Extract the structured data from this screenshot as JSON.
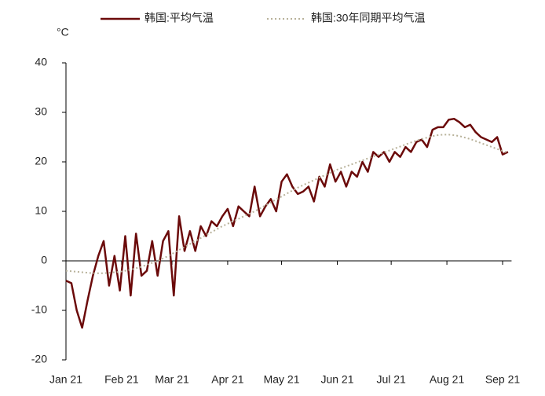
{
  "chart_data": {
    "type": "line",
    "y_unit": "°C",
    "x": [
      0,
      3,
      6,
      9,
      12,
      15,
      18,
      21,
      24,
      27,
      30,
      33,
      36,
      39,
      42,
      45,
      48,
      51,
      54,
      57,
      60,
      63,
      66,
      69,
      72,
      75,
      78,
      81,
      84,
      87,
      90,
      93,
      96,
      99,
      102,
      105,
      108,
      111,
      114,
      117,
      120,
      123,
      126,
      129,
      132,
      135,
      138,
      141,
      144,
      147,
      150,
      153,
      156,
      159,
      162,
      165,
      168,
      171,
      174,
      177,
      180,
      183,
      186,
      189,
      192,
      195,
      198,
      201,
      204,
      207,
      210,
      213,
      216,
      219,
      222,
      225,
      228,
      231,
      234,
      237,
      240,
      243,
      246
    ],
    "series": [
      {
        "name": "韩国:平均气温",
        "color": "#6b0a0a",
        "style": "solid",
        "values": [
          -4,
          -4.5,
          -10,
          -13.5,
          -8,
          -3,
          1,
          4,
          -5,
          1,
          -6,
          5,
          -7,
          5.5,
          -3,
          -2,
          4,
          -3,
          4,
          6,
          -7,
          9,
          2,
          6,
          2,
          7,
          5,
          8,
          7,
          9,
          10.5,
          7,
          11,
          10,
          9,
          15,
          9,
          11,
          12.5,
          10,
          16,
          17.5,
          15,
          13.5,
          14,
          15,
          12,
          17,
          15,
          19.5,
          16,
          18,
          15,
          18,
          17,
          20,
          18,
          22,
          21,
          22,
          20,
          22,
          21,
          23,
          22,
          24,
          24.5,
          23,
          26.5,
          27,
          27,
          28.5,
          28.7,
          28,
          27,
          27.5,
          26,
          25,
          24.5,
          24,
          25,
          21.5,
          22
        ]
      },
      {
        "name": "韩国:30年同期平均气温",
        "color": "#b8b29a",
        "style": "dotted",
        "values": [
          -2,
          -2.1,
          -2.2,
          -2.3,
          -2.4,
          -2.5,
          -2.5,
          -2.5,
          -2.4,
          -2.3,
          -2.2,
          -2,
          -1.8,
          -1.5,
          -1.2,
          -0.8,
          -0.4,
          0,
          0.5,
          1,
          1.6,
          2.2,
          2.8,
          3.4,
          4,
          4.6,
          5.2,
          5.8,
          6.4,
          7,
          7.5,
          8,
          8.5,
          9,
          9.5,
          10,
          10.6,
          11.2,
          11.8,
          12.4,
          13,
          13.6,
          14.2,
          14.8,
          15.3,
          15.8,
          16.3,
          16.8,
          17.3,
          17.8,
          18.3,
          18.7,
          19.1,
          19.5,
          19.9,
          20.3,
          20.7,
          21.1,
          21.5,
          21.9,
          22.3,
          22.7,
          23.1,
          23.5,
          23.9,
          24.3,
          24.6,
          24.9,
          25.2,
          25.4,
          25.5,
          25.5,
          25.4,
          25.2,
          24.9,
          24.6,
          24.2,
          23.8,
          23.4,
          23,
          22.6,
          22.2,
          21.8
        ]
      }
    ],
    "xlim": [
      0,
      248
    ],
    "xticks": [
      {
        "value": 0,
        "label": "Jan 21"
      },
      {
        "value": 31,
        "label": "Feb 21"
      },
      {
        "value": 59,
        "label": "Mar 21"
      },
      {
        "value": 90,
        "label": "Apr 21"
      },
      {
        "value": 120,
        "label": "May 21"
      },
      {
        "value": 151,
        "label": "Jun 21"
      },
      {
        "value": 181,
        "label": "Jul 21"
      },
      {
        "value": 212,
        "label": "Aug 21"
      },
      {
        "value": 243,
        "label": "Sep 21"
      }
    ],
    "ylim": [
      -20,
      40
    ],
    "yticks": [
      -20,
      -10,
      0,
      10,
      20,
      30,
      40
    ]
  }
}
